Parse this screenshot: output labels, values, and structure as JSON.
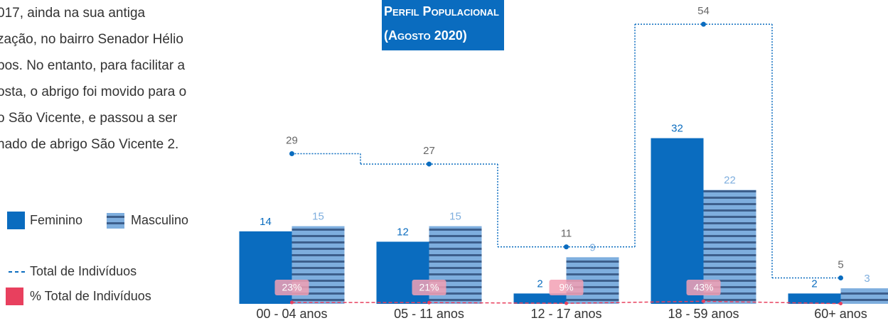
{
  "text": {
    "lines": [
      "017, ainda na sua antiga",
      "zação, no bairro Senador Hélio",
      "pos. No entanto, para facilitar a",
      "osta, o abrigo foi movido para o",
      "o São Vicente, e passou a ser",
      "nado de abrigo São Vicente 2."
    ]
  },
  "chart_data": {
    "type": "bar",
    "title": "Perfil Populacional",
    "subtitle": "(Agosto 2020)",
    "categories": [
      "00 - 04 anos",
      "05 - 11 anos",
      "12 - 17 anos",
      "18 - 59 anos",
      "60+ anos"
    ],
    "ylim": [
      0,
      58
    ],
    "y2lim": [
      0,
      5000
    ],
    "series": [
      {
        "name": "Feminino",
        "type": "bar",
        "color": "#0a6cbf",
        "values": [
          14,
          12,
          2,
          32,
          2
        ]
      },
      {
        "name": "Masculino",
        "type": "bar",
        "color": "#7eaede",
        "stripe_color": "#3d5f8c",
        "values": [
          15,
          15,
          9,
          22,
          3
        ]
      },
      {
        "name": "Total de Indivíduos",
        "type": "line",
        "color": "#0a6cbf",
        "values": [
          29,
          27,
          11,
          54,
          5
        ]
      },
      {
        "name": "% Total de Indivíduos",
        "type": "line",
        "axis": "y2",
        "color": "#e8405e",
        "values": [
          23,
          21,
          9,
          43,
          4
        ],
        "value_labels": [
          "23%",
          "21%",
          "9%",
          "43%",
          null
        ]
      }
    ]
  }
}
